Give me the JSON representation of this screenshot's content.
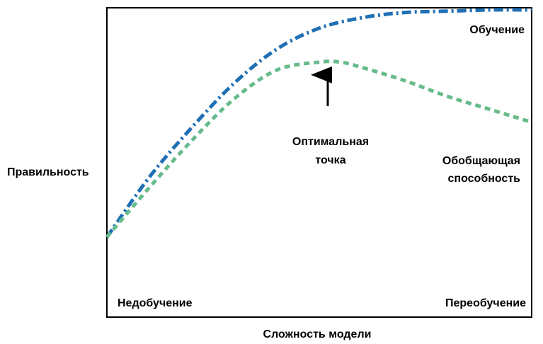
{
  "chart_data": {
    "type": "line",
    "title": "",
    "xlabel": "Сложность модели",
    "ylabel": "Правильность",
    "xlim": [
      0,
      1
    ],
    "ylim": [
      0,
      1
    ],
    "grid": false,
    "legend": "none",
    "series": [
      {
        "name": "Обучение",
        "style": "dash-dot",
        "color": "#1f6fb5",
        "x": [
          0,
          0.1,
          0.2,
          0.3,
          0.4,
          0.5,
          0.6,
          0.7,
          0.8,
          0.9,
          1.0
        ],
        "y": [
          0.13,
          0.36,
          0.55,
          0.72,
          0.85,
          0.93,
          0.97,
          0.99,
          0.995,
          1.0,
          1.0
        ]
      },
      {
        "name": "Обобщающая способность",
        "style": "dashed",
        "color": "#66bb8a",
        "x": [
          0,
          0.1,
          0.2,
          0.3,
          0.4,
          0.5,
          0.55,
          0.6,
          0.7,
          0.8,
          0.9,
          1.0
        ],
        "y": [
          0.13,
          0.32,
          0.5,
          0.66,
          0.77,
          0.8,
          0.8,
          0.78,
          0.73,
          0.67,
          0.62,
          0.57
        ]
      }
    ],
    "annotations": {
      "optimal_line1": "Оптимальная",
      "optimal_line2": "точка",
      "optimal_x": 0.52,
      "optimal_y": 0.8,
      "underfit": "Недобучение",
      "overfit": "Переобучение",
      "train_label": "Обучение",
      "gen_label_line1": "Обобщающая",
      "gen_label_line2": "способность"
    }
  }
}
